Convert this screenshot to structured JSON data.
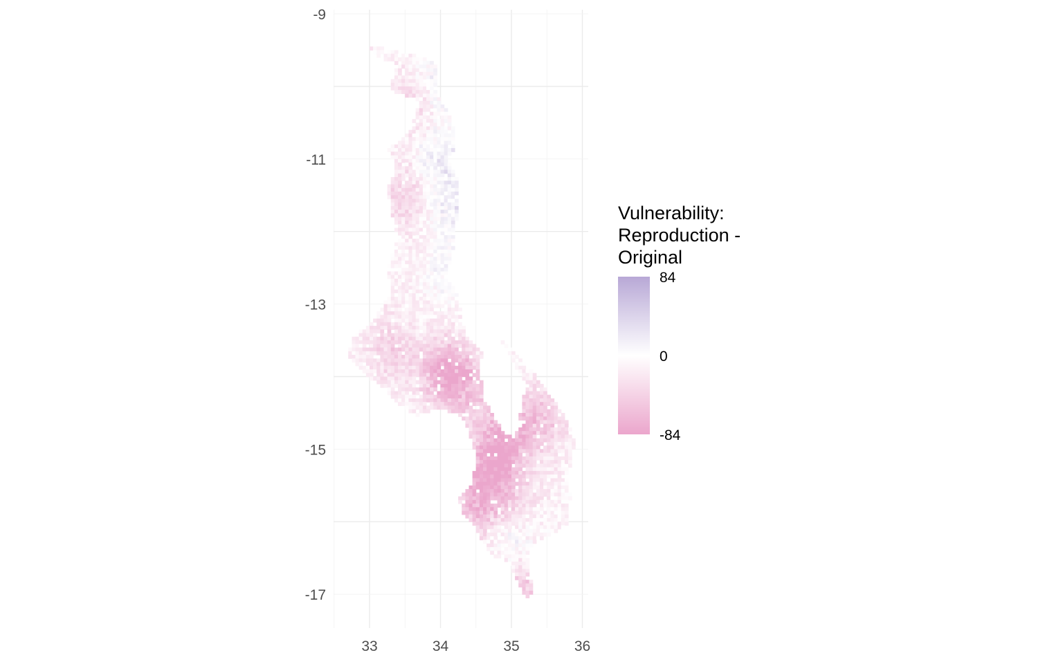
{
  "chart_data": {
    "type": "heatmap",
    "title": "",
    "xlabel": "",
    "ylabel": "",
    "xlim": [
      32.6,
      36.1
    ],
    "ylim": [
      -17.15,
      -8.95
    ],
    "x_ticks": [
      "33",
      "34",
      "35",
      "36"
    ],
    "y_ticks": [
      "-9",
      "-11",
      "-13",
      "-15",
      "-17"
    ],
    "grid": true,
    "legend": {
      "title": "Vulnerability: Reproduction - Original",
      "min_label": "-84",
      "mid_label": "0",
      "max_label": "84",
      "min": -84,
      "max": 84,
      "colors": {
        "low": "#eba6cc",
        "mid": "#ffffff",
        "high": "#b8a8d6"
      },
      "position": "right"
    },
    "region_outline": [
      [
        32.97,
        -9.43
      ],
      [
        33.4,
        -9.52
      ],
      [
        33.6,
        -9.55
      ],
      [
        33.95,
        -9.7
      ],
      [
        33.92,
        -10.05
      ],
      [
        34.15,
        -10.45
      ],
      [
        34.22,
        -10.8
      ],
      [
        34.1,
        -11.0
      ],
      [
        34.25,
        -11.3
      ],
      [
        34.25,
        -11.75
      ],
      [
        34.2,
        -12.15
      ],
      [
        34.08,
        -12.6
      ],
      [
        34.25,
        -12.9
      ],
      [
        34.3,
        -13.2
      ],
      [
        34.35,
        -13.45
      ],
      [
        34.6,
        -13.7
      ],
      [
        34.55,
        -13.8
      ],
      [
        34.6,
        -14.3
      ],
      [
        34.88,
        -14.75
      ],
      [
        35.05,
        -14.85
      ],
      [
        35.1,
        -14.65
      ],
      [
        35.2,
        -14.1
      ],
      [
        34.85,
        -13.5
      ],
      [
        35.2,
        -13.8
      ],
      [
        35.5,
        -14.2
      ],
      [
        35.75,
        -14.55
      ],
      [
        35.9,
        -14.9
      ],
      [
        35.85,
        -15.15
      ],
      [
        35.8,
        -15.3
      ],
      [
        35.83,
        -15.65
      ],
      [
        35.8,
        -16.05
      ],
      [
        35.5,
        -16.2
      ],
      [
        35.28,
        -16.3
      ],
      [
        35.25,
        -16.7
      ],
      [
        35.3,
        -16.95
      ],
      [
        35.2,
        -17.05
      ],
      [
        35.08,
        -16.8
      ],
      [
        34.95,
        -16.55
      ],
      [
        34.7,
        -16.45
      ],
      [
        34.5,
        -16.1
      ],
      [
        34.3,
        -15.9
      ],
      [
        34.25,
        -15.65
      ],
      [
        34.45,
        -15.45
      ],
      [
        34.5,
        -15.1
      ],
      [
        34.4,
        -14.75
      ],
      [
        34.25,
        -14.5
      ],
      [
        33.95,
        -14.45
      ],
      [
        33.65,
        -14.55
      ],
      [
        33.3,
        -14.3
      ],
      [
        33.05,
        -14.05
      ],
      [
        32.7,
        -13.75
      ],
      [
        32.75,
        -13.45
      ],
      [
        33.0,
        -13.3
      ],
      [
        33.3,
        -12.85
      ],
      [
        33.25,
        -12.5
      ],
      [
        33.4,
        -12.1
      ],
      [
        33.3,
        -11.7
      ],
      [
        33.25,
        -11.4
      ],
      [
        33.38,
        -11.1
      ],
      [
        33.25,
        -10.85
      ],
      [
        33.45,
        -10.75
      ],
      [
        33.6,
        -10.55
      ],
      [
        33.7,
        -10.2
      ],
      [
        33.3,
        -10.05
      ],
      [
        33.35,
        -9.7
      ],
      [
        33.05,
        -9.55
      ]
    ],
    "hotspots": [
      {
        "x": 34.3,
        "y": -14.1,
        "value": -60
      },
      {
        "x": 34.0,
        "y": -13.9,
        "value": -50
      },
      {
        "x": 34.9,
        "y": -14.8,
        "value": -55
      },
      {
        "x": 34.7,
        "y": -15.2,
        "value": -60
      },
      {
        "x": 35.4,
        "y": -14.6,
        "value": -45
      },
      {
        "x": 34.5,
        "y": -15.8,
        "value": -55
      },
      {
        "x": 35.0,
        "y": -15.6,
        "value": -30
      },
      {
        "x": 33.9,
        "y": -10.0,
        "value": 30
      },
      {
        "x": 34.0,
        "y": -11.0,
        "value": 35
      },
      {
        "x": 34.2,
        "y": -11.7,
        "value": 30
      },
      {
        "x": 35.0,
        "y": -16.3,
        "value": 25
      },
      {
        "x": 34.1,
        "y": -12.6,
        "value": 20
      },
      {
        "x": 33.6,
        "y": -10.2,
        "value": -35
      },
      {
        "x": 33.5,
        "y": -11.5,
        "value": -30
      },
      {
        "x": 33.3,
        "y": -13.6,
        "value": -30
      },
      {
        "x": 35.2,
        "y": -16.9,
        "value": -40
      }
    ]
  }
}
